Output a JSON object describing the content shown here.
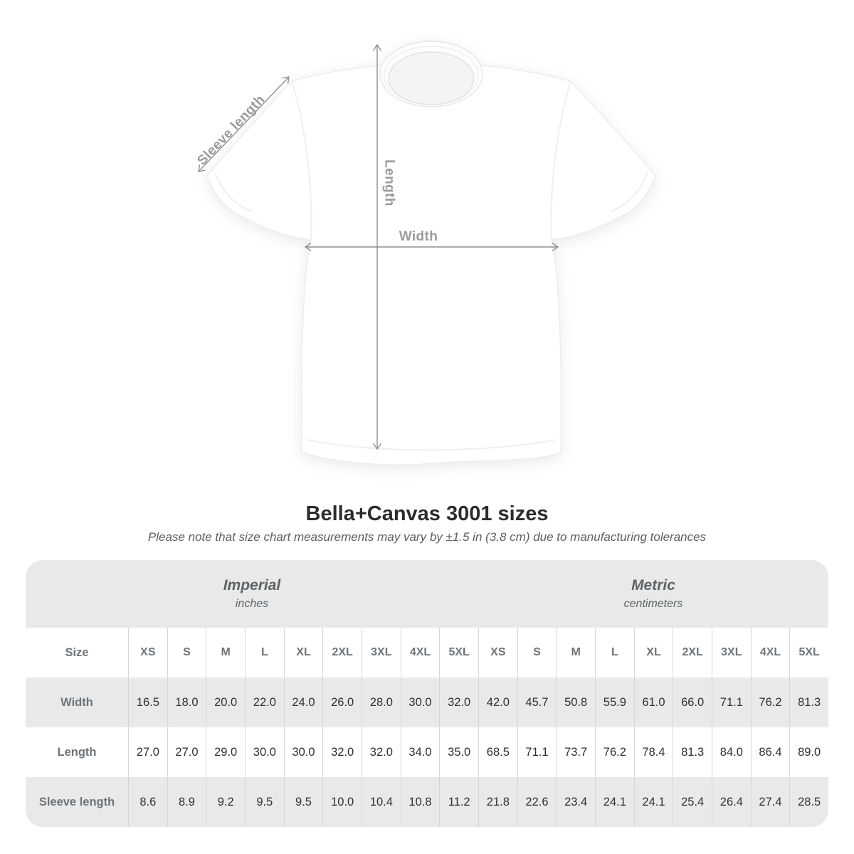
{
  "title": "Bella+Canvas 3001 sizes",
  "subtitle": "Please note that size chart measurements may vary by ±1.5 in (3.8 cm) due to manufacturing tolerances",
  "diagram": {
    "labels": {
      "sleeve": "Sleeve length",
      "length": "Length",
      "width": "Width"
    },
    "line_color": "#909090",
    "label_color": "#9b9b9b"
  },
  "table": {
    "size_label": "Size",
    "groups": [
      {
        "name": "Imperial",
        "unit": "inches"
      },
      {
        "name": "Metric",
        "unit": "centimeters"
      }
    ],
    "sizes": [
      "XS",
      "S",
      "M",
      "L",
      "XL",
      "2XL",
      "3XL",
      "4XL",
      "5XL"
    ],
    "rows": [
      {
        "label": "Width",
        "imperial": [
          "16.5",
          "18.0",
          "20.0",
          "22.0",
          "24.0",
          "26.0",
          "28.0",
          "30.0",
          "32.0"
        ],
        "metric": [
          "42.0",
          "45.7",
          "50.8",
          "55.9",
          "61.0",
          "66.0",
          "71.1",
          "76.2",
          "81.3"
        ]
      },
      {
        "label": "Length",
        "imperial": [
          "27.0",
          "27.0",
          "29.0",
          "30.0",
          "30.0",
          "32.0",
          "32.0",
          "34.0",
          "35.0"
        ],
        "metric": [
          "68.5",
          "71.1",
          "73.7",
          "76.2",
          "78.4",
          "81.3",
          "84.0",
          "86.4",
          "89.0"
        ]
      },
      {
        "label": "Sleeve length",
        "imperial": [
          "8.6",
          "8.9",
          "9.2",
          "9.5",
          "9.5",
          "10.0",
          "10.4",
          "10.8",
          "11.2"
        ],
        "metric": [
          "21.8",
          "22.6",
          "23.4",
          "24.1",
          "24.1",
          "25.4",
          "26.4",
          "27.4",
          "28.5"
        ]
      }
    ],
    "colors": {
      "card_bg": "#e9e9e9",
      "divider": "#d7d7d7",
      "header_text": "#6d747a",
      "value_text": "#303030"
    }
  },
  "chart_data": {
    "type": "table",
    "title": "Bella+Canvas 3001 sizes",
    "note": "Please note that size chart measurements may vary by ±1.5 in (3.8 cm) due to manufacturing tolerances",
    "column_groups": [
      "Imperial (inches)",
      "Metric (centimeters)"
    ],
    "categories": [
      "XS",
      "S",
      "M",
      "L",
      "XL",
      "2XL",
      "3XL",
      "4XL",
      "5XL"
    ],
    "series": [
      {
        "name": "Width (in)",
        "values": [
          16.5,
          18.0,
          20.0,
          22.0,
          24.0,
          26.0,
          28.0,
          30.0,
          32.0
        ]
      },
      {
        "name": "Length (in)",
        "values": [
          27.0,
          27.0,
          29.0,
          30.0,
          30.0,
          32.0,
          32.0,
          34.0,
          35.0
        ]
      },
      {
        "name": "Sleeve length (in)",
        "values": [
          8.6,
          8.9,
          9.2,
          9.5,
          9.5,
          10.0,
          10.4,
          10.8,
          11.2
        ]
      },
      {
        "name": "Width (cm)",
        "values": [
          42.0,
          45.7,
          50.8,
          55.9,
          61.0,
          66.0,
          71.1,
          76.2,
          81.3
        ]
      },
      {
        "name": "Length (cm)",
        "values": [
          68.5,
          71.1,
          73.7,
          76.2,
          78.4,
          81.3,
          84.0,
          86.4,
          89.0
        ]
      },
      {
        "name": "Sleeve length (cm)",
        "values": [
          21.8,
          22.6,
          23.4,
          24.1,
          24.1,
          25.4,
          26.4,
          27.4,
          28.5
        ]
      }
    ]
  }
}
